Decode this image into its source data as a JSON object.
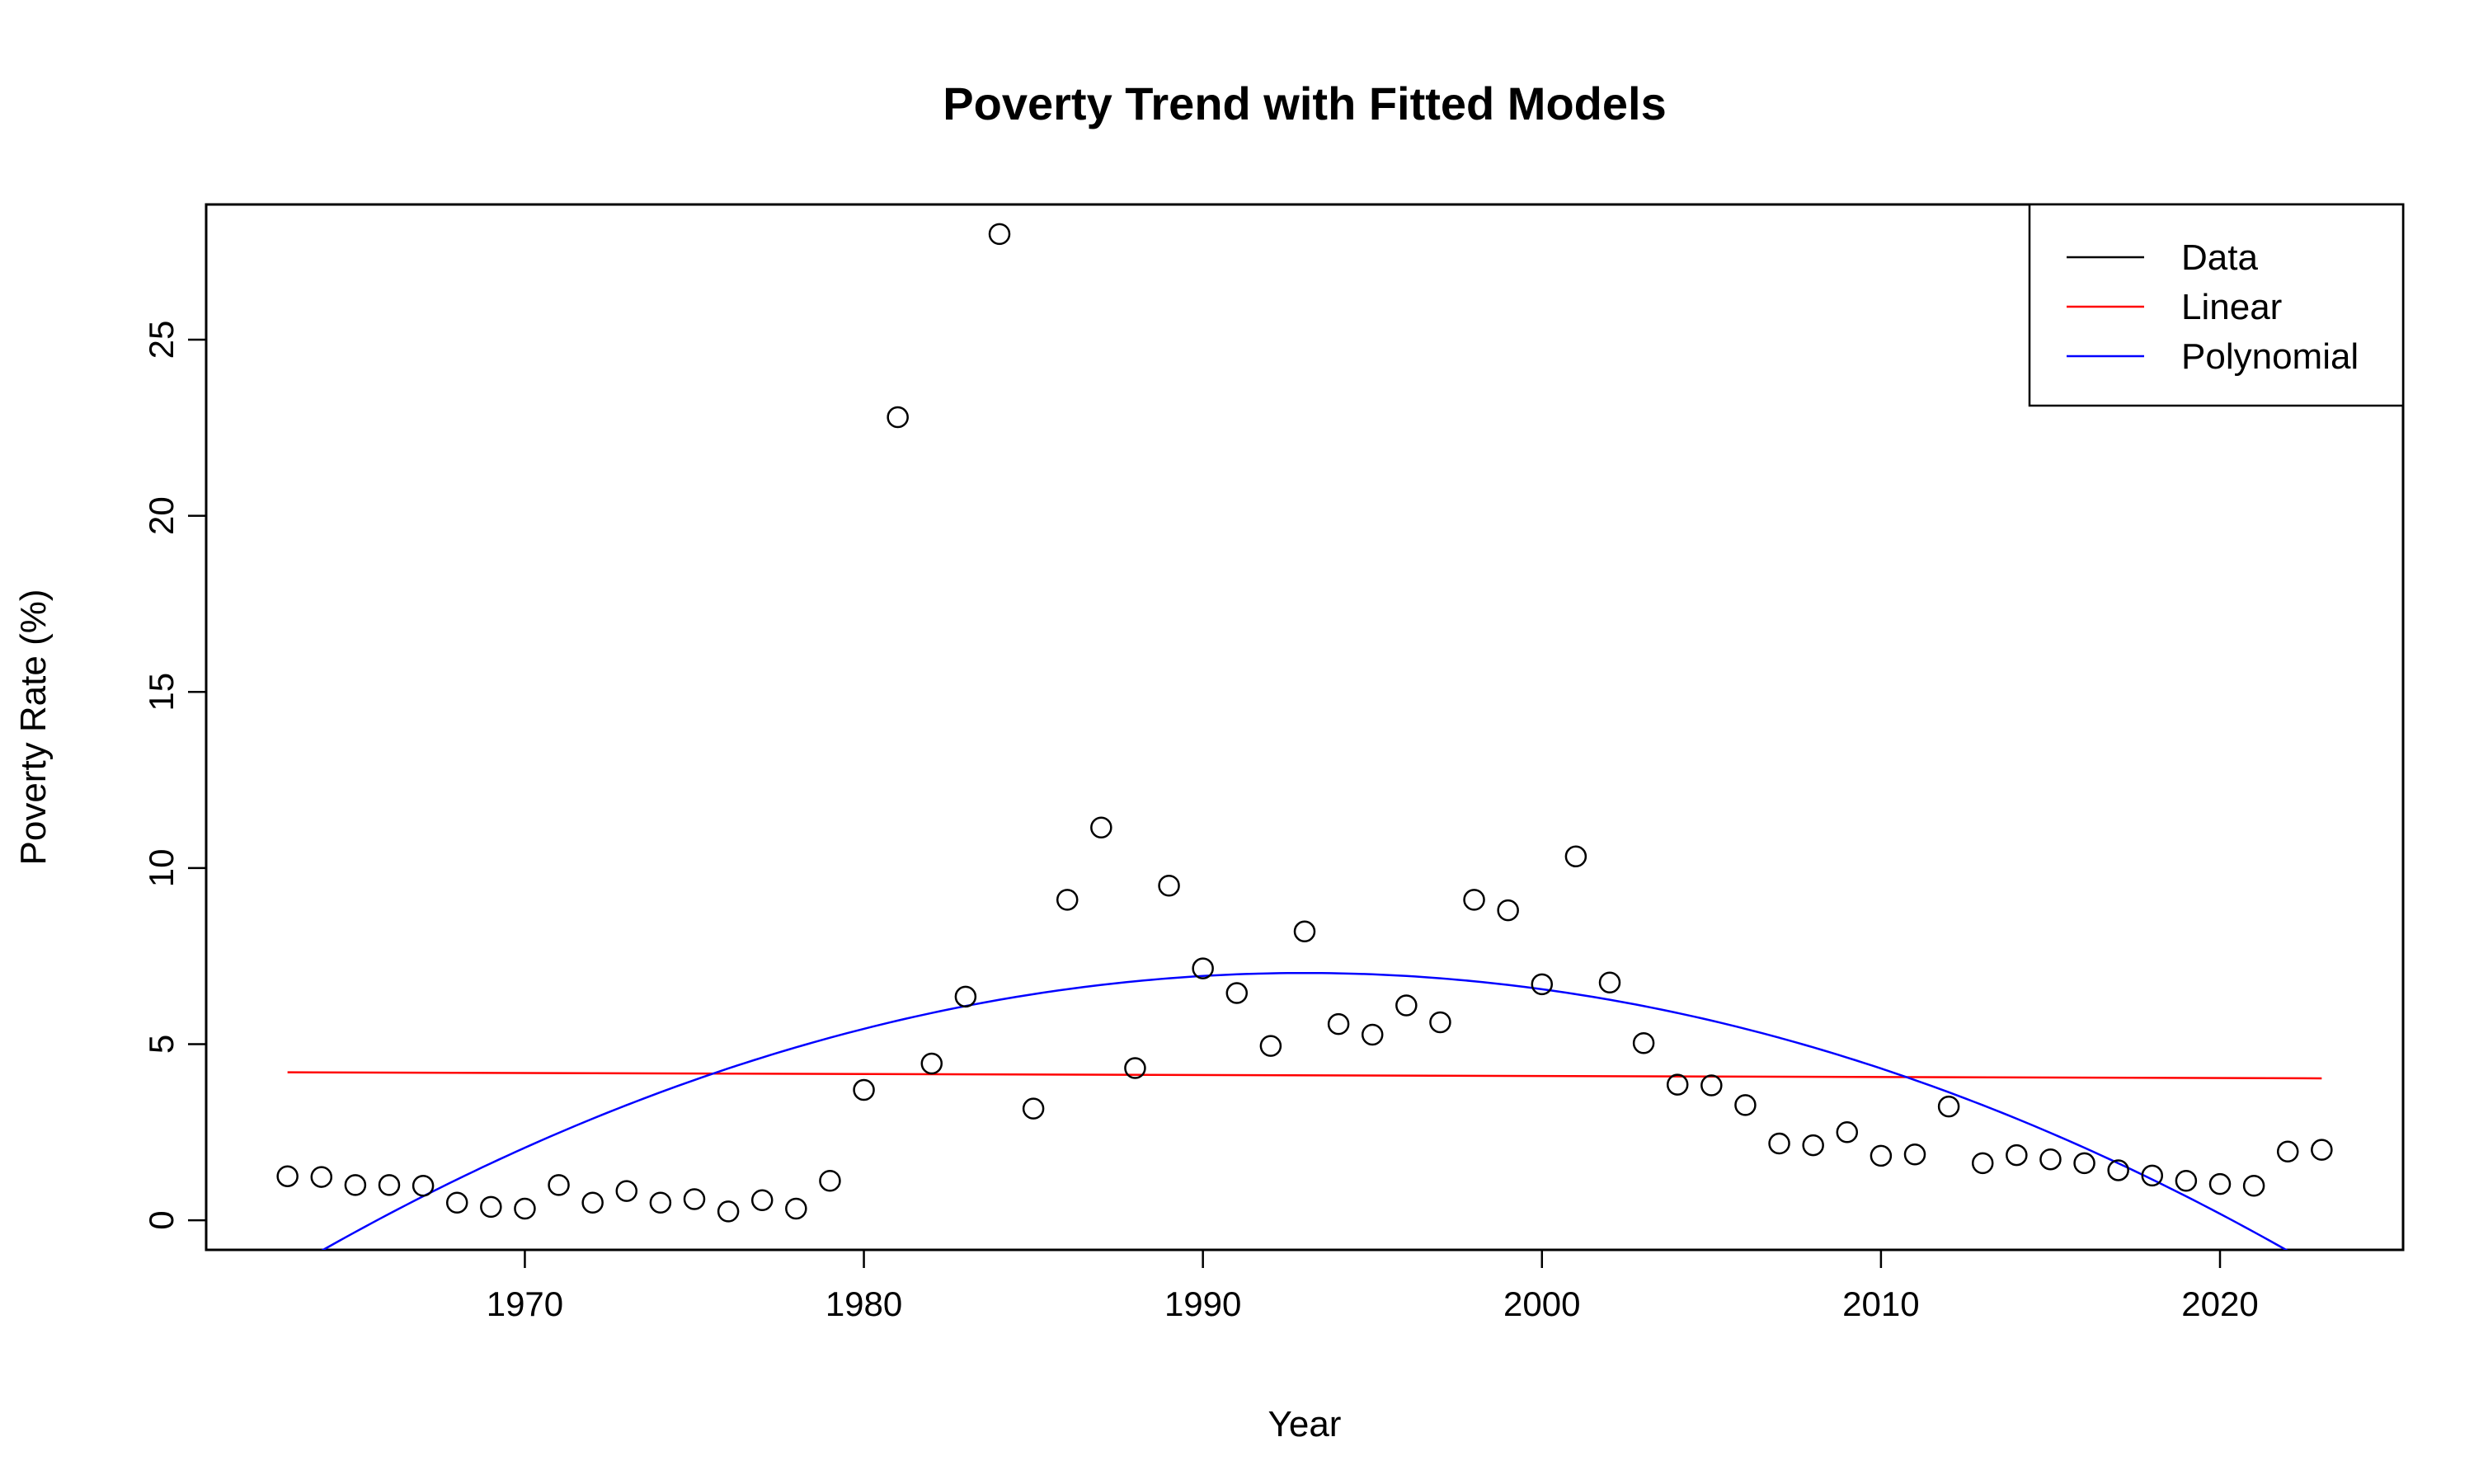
{
  "chart_data": {
    "type": "scatter",
    "title": "Poverty Trend with Fitted Models",
    "xlabel": "Year",
    "ylabel": "Poverty Rate (%)",
    "xlim": [
      1960.6,
      2025.4
    ],
    "ylim": [
      -0.84,
      28.84
    ],
    "x_ticks": [
      1970,
      1980,
      1990,
      2000,
      2010,
      2020
    ],
    "y_ticks": [
      0,
      5,
      10,
      15,
      20,
      25
    ],
    "grid": false,
    "legend_position": "top-right",
    "series": [
      {
        "name": "Data",
        "kind": "points",
        "color": "#000000",
        "x": [
          1963,
          1964,
          1965,
          1966,
          1967,
          1968,
          1969,
          1970,
          1971,
          1972,
          1973,
          1974,
          1975,
          1976,
          1977,
          1978,
          1979,
          1980,
          1981,
          1982,
          1983,
          1984,
          1985,
          1986,
          1987,
          1988,
          1989,
          1990,
          1991,
          1992,
          1993,
          1994,
          1995,
          1996,
          1997,
          1998,
          1999,
          2000,
          2001,
          2002,
          2003,
          2004,
          2005,
          2006,
          2007,
          2008,
          2009,
          2010,
          2011,
          2012,
          2013,
          2014,
          2015,
          2016,
          2017,
          2018,
          2019,
          2020,
          2021,
          2022,
          2023
        ],
        "y": [
          1.25,
          1.23,
          1.0,
          1.0,
          0.98,
          0.5,
          0.38,
          0.33,
          1.0,
          0.5,
          0.83,
          0.5,
          0.6,
          0.25,
          0.57,
          0.33,
          1.12,
          3.7,
          22.8,
          4.45,
          6.35,
          28.0,
          3.17,
          9.1,
          11.15,
          4.32,
          9.5,
          7.15,
          6.45,
          4.95,
          8.2,
          5.57,
          5.27,
          6.1,
          5.62,
          9.1,
          8.8,
          6.7,
          10.33,
          6.75,
          5.03,
          3.85,
          3.83,
          3.27,
          2.18,
          2.13,
          2.5,
          1.83,
          1.87,
          3.23,
          1.62,
          1.85,
          1.73,
          1.62,
          1.42,
          1.27,
          1.12,
          1.03,
          0.98,
          1.95,
          2.0
        ]
      },
      {
        "name": "Linear",
        "kind": "line",
        "color": "#ff0000",
        "x": [
          1963,
          2023
        ],
        "y": [
          4.2,
          4.03
        ]
      },
      {
        "name": "Polynomial",
        "kind": "curve",
        "color": "#0000ff",
        "vertex_x": 1993,
        "vertex_y": 7.02,
        "x": [
          1963,
          1968,
          1973,
          1978,
          1983,
          1988,
          1993,
          1998,
          2003,
          2008,
          2013,
          2018,
          2023
        ],
        "y": [
          -1.42,
          0.7,
          2.57,
          4.2,
          5.57,
          6.68,
          7.02,
          6.68,
          5.57,
          4.2,
          2.57,
          0.7,
          -1.42
        ]
      }
    ]
  }
}
